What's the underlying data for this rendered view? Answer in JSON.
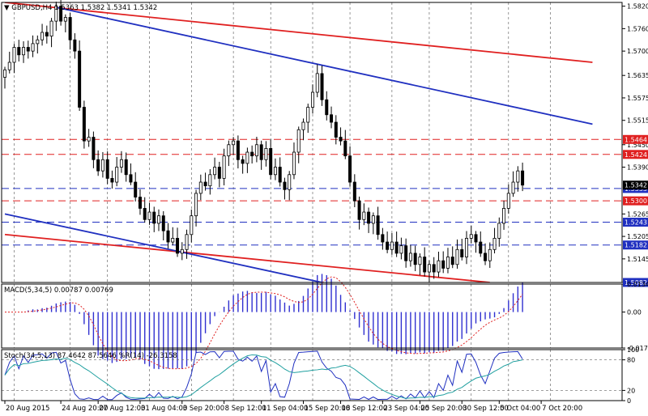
{
  "chart_data": [
    {
      "type": "candlestick",
      "title": "GBPUSD,H4  1.5363 1.5382 1.5341 1.5342",
      "ylim": [
        1.5082,
        1.583
      ],
      "y_ticks": [
        "1.5820",
        "1.5760",
        "1.5700",
        "1.5635",
        "1.5575",
        "1.5515",
        "1.5450",
        "1.5390",
        "1.5265",
        "1.5205",
        "1.5145",
        "1.5082"
      ],
      "hlines": [
        {
          "label": "1.5464",
          "value": 1.5464,
          "color": "#e02020"
        },
        {
          "label": "1.5424",
          "value": 1.5424,
          "color": "#e02020"
        },
        {
          "label": "1.5333",
          "value": 1.5333,
          "color": "#2030c0"
        },
        {
          "label": "1.5300",
          "value": 1.53,
          "color": "#e02020"
        },
        {
          "label": "1.5243",
          "value": 1.5243,
          "color": "#2030c0"
        },
        {
          "label": "1.5182",
          "value": 1.5182,
          "color": "#2030c0"
        },
        {
          "label": "1.5082",
          "value": 1.5082,
          "color": "#2030c0"
        }
      ],
      "price_label": {
        "text": "1.5342",
        "value": 1.5342
      },
      "trend_lines": [
        {
          "color": "#e02020",
          "points": [
            [
              0,
              1.583
            ],
            [
              126,
              1.567
            ]
          ]
        },
        {
          "color": "#e02020",
          "points": [
            [
              0,
              1.521
            ],
            [
              104,
              1.5082
            ]
          ]
        },
        {
          "color": "#2030c0",
          "points": [
            [
              11,
              1.5817
            ],
            [
              126,
              1.5505
            ]
          ]
        },
        {
          "color": "#2030c0",
          "points": [
            [
              0,
              1.5265
            ],
            [
              68,
              1.5082
            ]
          ]
        }
      ],
      "x_ticks": [
        {
          "label": "20 Aug 2015",
          "index": 0
        },
        {
          "label": "24 Aug 20:00",
          "index": 12
        },
        {
          "label": "27 Aug 12:00",
          "index": 20
        },
        {
          "label": "31 Aug 04:00",
          "index": 29
        },
        {
          "label": "3 Sep 20:00",
          "index": 38
        },
        {
          "label": "8 Sep 12:00",
          "index": 47
        },
        {
          "label": "11 Sep 04:00",
          "index": 55
        },
        {
          "label": "15 Sep 20:00",
          "index": 64
        },
        {
          "label": "18 Sep 12:00",
          "index": 72
        },
        {
          "label": "23 Sep 04:00",
          "index": 81
        },
        {
          "label": "25 Sep 20:00",
          "index": 89
        },
        {
          "label": "30 Sep 12:00",
          "index": 98
        },
        {
          "label": "5 Oct 04:00",
          "index": 106
        },
        {
          "label": "7 Oct 20:00",
          "index": 115
        }
      ],
      "closes": [
        1.565,
        1.567,
        1.571,
        1.569,
        1.571,
        1.57,
        1.572,
        1.573,
        1.575,
        1.574,
        1.578,
        1.582,
        1.578,
        1.579,
        1.573,
        1.57,
        1.555,
        1.546,
        1.547,
        1.541,
        1.538,
        1.541,
        1.536,
        1.535,
        1.539,
        1.541,
        1.537,
        1.535,
        1.531,
        1.528,
        1.525,
        1.527,
        1.524,
        1.526,
        1.522,
        1.519,
        1.52,
        1.516,
        1.517,
        1.521,
        1.526,
        1.532,
        1.535,
        1.534,
        1.537,
        1.539,
        1.536,
        1.542,
        1.545,
        1.546,
        1.541,
        1.54,
        1.543,
        1.542,
        1.545,
        1.541,
        1.544,
        1.537,
        1.539,
        1.535,
        1.533,
        1.537,
        1.543,
        1.549,
        1.551,
        1.555,
        1.559,
        1.564,
        1.557,
        1.553,
        1.551,
        1.547,
        1.546,
        1.542,
        1.535,
        1.53,
        1.525,
        1.527,
        1.524,
        1.526,
        1.521,
        1.519,
        1.517,
        1.519,
        1.516,
        1.518,
        1.514,
        1.516,
        1.513,
        1.515,
        1.511,
        1.513,
        1.511,
        1.514,
        1.512,
        1.515,
        1.513,
        1.517,
        1.515,
        1.52,
        1.521,
        1.519,
        1.516,
        1.514,
        1.517,
        1.52,
        1.524,
        1.528,
        1.532,
        1.535,
        1.538,
        1.5342
      ]
    },
    {
      "type": "bar",
      "title": "MACD(5,34,5) 0.00787 0.00769",
      "ylim": [
        -0.01732,
        0.01348
      ],
      "y_ticks": [
        "0.01348",
        "0.00",
        "-0.01732"
      ],
      "signal_color": "#e02020",
      "bar_color": "#3030d0"
    },
    {
      "type": "line",
      "title": "Stoch(34,5,13) 87.4642 87.5646  %R(14) -26.3158",
      "ylim": [
        0,
        100
      ],
      "y_ticks": [
        "100",
        "80",
        "20",
        "0"
      ],
      "levels": [
        20,
        80
      ],
      "series": [
        {
          "color": "#2030c0"
        },
        {
          "color": "#20a0a0"
        }
      ]
    }
  ]
}
